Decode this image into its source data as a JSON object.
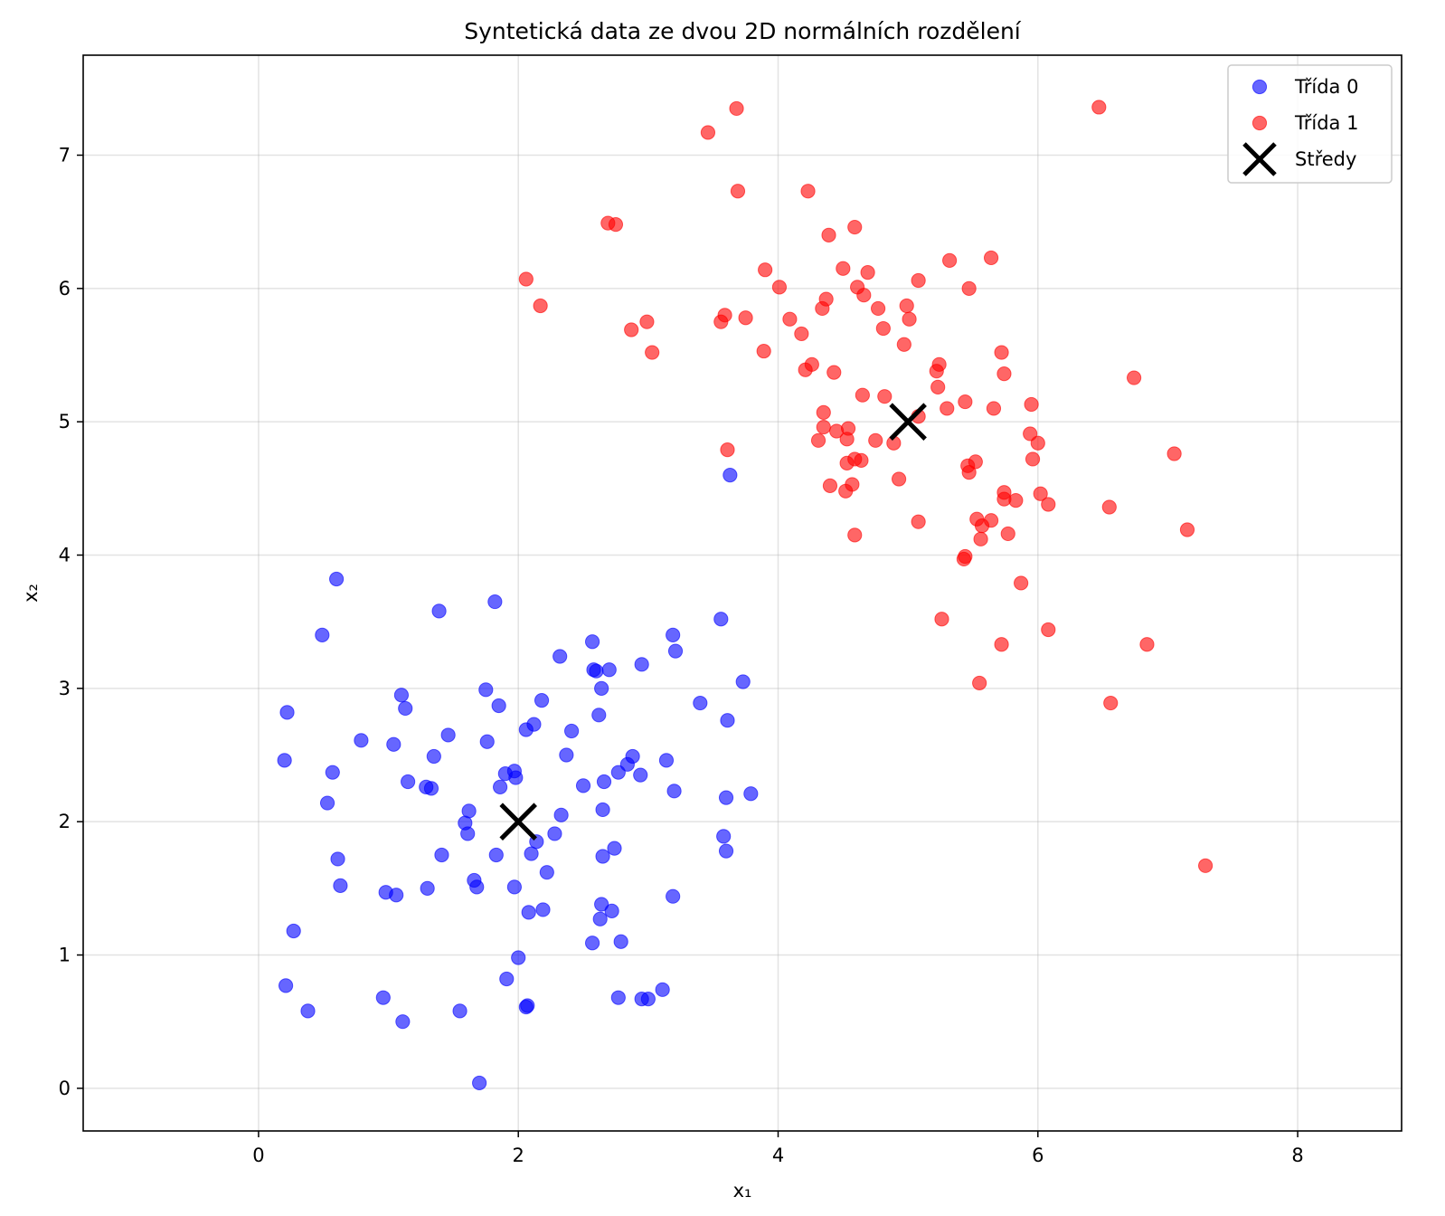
{
  "chart_data": {
    "type": "scatter",
    "title": "Syntetická data ze dvou 2D normálních rozdělení",
    "xlabel": "x₁",
    "ylabel": "x₂",
    "xlim": [
      -1.35,
      8.8
    ],
    "ylim": [
      -0.32,
      7.75
    ],
    "xticks": [
      0,
      2,
      4,
      6,
      8
    ],
    "yticks": [
      0,
      1,
      2,
      3,
      4,
      5,
      6,
      7
    ],
    "grid": true,
    "legend_position": "top-right",
    "series": [
      {
        "name": "Třída 0",
        "color": "#0000ff",
        "marker": "circle",
        "points": [
          [
            0.6,
            3.82
          ],
          [
            0.49,
            3.4
          ],
          [
            1.39,
            3.58
          ],
          [
            1.82,
            3.65
          ],
          [
            3.63,
            4.6
          ],
          [
            3.56,
            3.52
          ],
          [
            0.22,
            2.82
          ],
          [
            0.2,
            2.46
          ],
          [
            0.57,
            2.37
          ],
          [
            0.53,
            2.14
          ],
          [
            0.79,
            2.61
          ],
          [
            1.04,
            2.58
          ],
          [
            1.1,
            2.95
          ],
          [
            1.13,
            2.85
          ],
          [
            1.15,
            2.3
          ],
          [
            1.29,
            2.26
          ],
          [
            1.33,
            2.25
          ],
          [
            1.35,
            2.49
          ],
          [
            1.46,
            2.65
          ],
          [
            1.75,
            2.99
          ],
          [
            1.76,
            2.6
          ],
          [
            1.85,
            2.87
          ],
          [
            1.9,
            2.36
          ],
          [
            1.86,
            2.26
          ],
          [
            1.97,
            2.38
          ],
          [
            1.98,
            2.33
          ],
          [
            2.06,
            2.69
          ],
          [
            2.12,
            2.73
          ],
          [
            2.18,
            2.91
          ],
          [
            2.32,
            3.24
          ],
          [
            2.41,
            2.68
          ],
          [
            2.37,
            2.5
          ],
          [
            2.57,
            3.35
          ],
          [
            2.58,
            3.14
          ],
          [
            2.6,
            3.13
          ],
          [
            2.7,
            3.14
          ],
          [
            2.64,
            3.0
          ],
          [
            2.62,
            2.8
          ],
          [
            2.95,
            3.18
          ],
          [
            3.19,
            3.4
          ],
          [
            3.21,
            3.28
          ],
          [
            3.73,
            3.05
          ],
          [
            3.4,
            2.89
          ],
          [
            3.61,
            2.76
          ],
          [
            2.88,
            2.49
          ],
          [
            2.84,
            2.43
          ],
          [
            2.77,
            2.37
          ],
          [
            2.66,
            2.3
          ],
          [
            2.94,
            2.35
          ],
          [
            3.14,
            2.46
          ],
          [
            3.2,
            2.23
          ],
          [
            3.6,
            2.18
          ],
          [
            3.79,
            2.21
          ],
          [
            2.5,
            2.27
          ],
          [
            2.33,
            2.05
          ],
          [
            1.62,
            2.08
          ],
          [
            1.59,
            1.99
          ],
          [
            1.61,
            1.91
          ],
          [
            2.28,
            1.91
          ],
          [
            2.14,
            1.85
          ],
          [
            2.1,
            1.76
          ],
          [
            1.83,
            1.75
          ],
          [
            1.41,
            1.75
          ],
          [
            2.65,
            2.09
          ],
          [
            2.74,
            1.8
          ],
          [
            2.65,
            1.74
          ],
          [
            3.58,
            1.89
          ],
          [
            3.6,
            1.78
          ],
          [
            0.61,
            1.72
          ],
          [
            0.63,
            1.52
          ],
          [
            0.98,
            1.47
          ],
          [
            1.06,
            1.45
          ],
          [
            1.3,
            1.5
          ],
          [
            1.66,
            1.56
          ],
          [
            1.68,
            1.51
          ],
          [
            1.97,
            1.51
          ],
          [
            2.22,
            1.62
          ],
          [
            2.08,
            1.32
          ],
          [
            2.19,
            1.34
          ],
          [
            2.64,
            1.38
          ],
          [
            2.72,
            1.33
          ],
          [
            2.63,
            1.27
          ],
          [
            3.19,
            1.44
          ],
          [
            2.57,
            1.09
          ],
          [
            2.79,
            1.1
          ],
          [
            2.0,
            0.98
          ],
          [
            1.91,
            0.82
          ],
          [
            0.27,
            1.18
          ],
          [
            0.21,
            0.77
          ],
          [
            0.38,
            0.58
          ],
          [
            0.96,
            0.68
          ],
          [
            1.11,
            0.5
          ],
          [
            1.55,
            0.58
          ],
          [
            2.07,
            0.62
          ],
          [
            2.06,
            0.61
          ],
          [
            2.77,
            0.68
          ],
          [
            2.95,
            0.67
          ],
          [
            3.0,
            0.67
          ],
          [
            3.11,
            0.74
          ],
          [
            1.7,
            0.04
          ]
        ]
      },
      {
        "name": "Třída 1",
        "color": "#ff0000",
        "marker": "circle",
        "points": [
          [
            3.68,
            7.35
          ],
          [
            3.46,
            7.17
          ],
          [
            6.47,
            7.36
          ],
          [
            3.69,
            6.73
          ],
          [
            4.23,
            6.73
          ],
          [
            2.69,
            6.49
          ],
          [
            2.75,
            6.48
          ],
          [
            4.39,
            6.4
          ],
          [
            4.59,
            6.46
          ],
          [
            5.32,
            6.21
          ],
          [
            5.64,
            6.23
          ],
          [
            3.9,
            6.14
          ],
          [
            4.5,
            6.15
          ],
          [
            4.69,
            6.12
          ],
          [
            4.01,
            6.01
          ],
          [
            4.61,
            6.01
          ],
          [
            4.66,
            5.95
          ],
          [
            5.08,
            6.06
          ],
          [
            5.47,
            6.0
          ],
          [
            2.06,
            6.07
          ],
          [
            2.17,
            5.87
          ],
          [
            3.59,
            5.8
          ],
          [
            3.56,
            5.75
          ],
          [
            3.75,
            5.78
          ],
          [
            4.09,
            5.77
          ],
          [
            4.34,
            5.85
          ],
          [
            4.37,
            5.92
          ],
          [
            4.77,
            5.85
          ],
          [
            4.99,
            5.87
          ],
          [
            5.01,
            5.77
          ],
          [
            4.81,
            5.7
          ],
          [
            4.18,
            5.66
          ],
          [
            2.87,
            5.69
          ],
          [
            2.99,
            5.75
          ],
          [
            3.03,
            5.52
          ],
          [
            3.89,
            5.53
          ],
          [
            4.21,
            5.39
          ],
          [
            4.26,
            5.43
          ],
          [
            4.43,
            5.37
          ],
          [
            4.97,
            5.58
          ],
          [
            5.22,
            5.38
          ],
          [
            5.24,
            5.43
          ],
          [
            5.23,
            5.26
          ],
          [
            5.72,
            5.52
          ],
          [
            5.74,
            5.36
          ],
          [
            6.74,
            5.33
          ],
          [
            4.35,
            5.07
          ],
          [
            4.65,
            5.2
          ],
          [
            4.82,
            5.19
          ],
          [
            5.3,
            5.1
          ],
          [
            5.44,
            5.15
          ],
          [
            5.66,
            5.1
          ],
          [
            5.95,
            5.13
          ],
          [
            4.35,
            4.96
          ],
          [
            4.45,
            4.93
          ],
          [
            4.54,
            4.95
          ],
          [
            4.31,
            4.86
          ],
          [
            4.53,
            4.87
          ],
          [
            4.75,
            4.86
          ],
          [
            4.89,
            4.84
          ],
          [
            5.08,
            5.04
          ],
          [
            5.94,
            4.91
          ],
          [
            6.0,
            4.84
          ],
          [
            3.61,
            4.79
          ],
          [
            4.53,
            4.69
          ],
          [
            4.59,
            4.72
          ],
          [
            4.64,
            4.71
          ],
          [
            5.46,
            4.67
          ],
          [
            5.47,
            4.62
          ],
          [
            5.52,
            4.7
          ],
          [
            5.96,
            4.72
          ],
          [
            7.05,
            4.76
          ],
          [
            4.4,
            4.52
          ],
          [
            4.52,
            4.48
          ],
          [
            4.57,
            4.53
          ],
          [
            4.93,
            4.57
          ],
          [
            5.74,
            4.47
          ],
          [
            5.74,
            4.42
          ],
          [
            5.83,
            4.41
          ],
          [
            6.02,
            4.46
          ],
          [
            6.08,
            4.38
          ],
          [
            6.55,
            4.36
          ],
          [
            5.08,
            4.25
          ],
          [
            5.53,
            4.27
          ],
          [
            5.57,
            4.22
          ],
          [
            5.64,
            4.26
          ],
          [
            5.56,
            4.12
          ],
          [
            5.77,
            4.16
          ],
          [
            7.15,
            4.19
          ],
          [
            4.59,
            4.15
          ],
          [
            5.44,
            3.99
          ],
          [
            5.43,
            3.97
          ],
          [
            5.87,
            3.79
          ],
          [
            5.26,
            3.52
          ],
          [
            6.08,
            3.44
          ],
          [
            5.72,
            3.33
          ],
          [
            6.84,
            3.33
          ],
          [
            5.55,
            3.04
          ],
          [
            6.56,
            2.89
          ],
          [
            7.29,
            1.67
          ]
        ]
      }
    ],
    "centers": {
      "name": "Středy",
      "color": "#000000",
      "marker": "x",
      "points": [
        [
          2,
          2
        ],
        [
          5,
          5
        ]
      ]
    }
  }
}
